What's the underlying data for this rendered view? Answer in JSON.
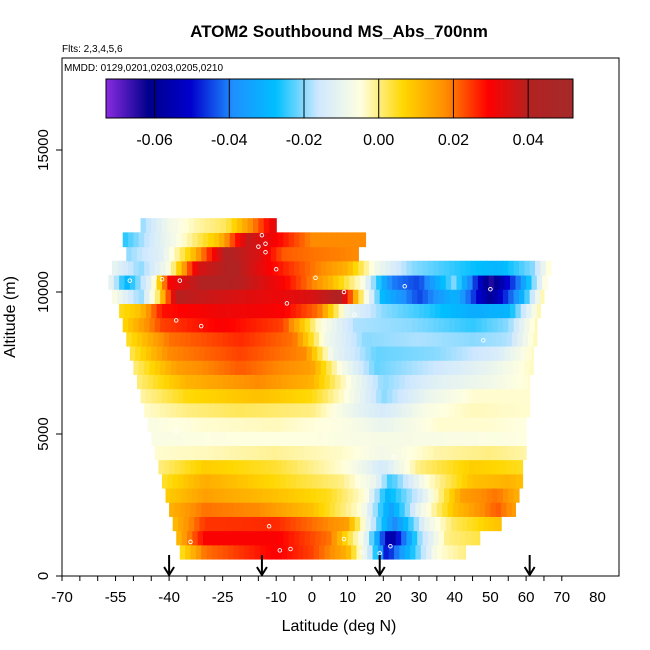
{
  "chart_data": {
    "type": "heatmap",
    "title": "ATOM2 Southbound MS_Abs_700nm",
    "flights_note": "Flts: 2,3,4,5,6",
    "dates_note": "MMDD: 0129,0201,0203,0205,0210",
    "xlabel": "Latitude (deg N)",
    "ylabel": "Altitude (m)",
    "xlim": [
      -70,
      80
    ],
    "ylim": [
      0,
      18000
    ],
    "x_ticks": [
      -70,
      -55,
      -40,
      -25,
      -10,
      0,
      10,
      20,
      30,
      40,
      50,
      60,
      70,
      80
    ],
    "y_ticks": [
      0,
      5000,
      10000,
      15000
    ],
    "colorbar": {
      "range": [
        -0.073,
        0.052
      ],
      "ticks": [
        -0.06,
        -0.04,
        -0.02,
        0.0,
        0.02,
        0.04
      ],
      "tick_labels": [
        "-0.06",
        "-0.04",
        "-0.02",
        "0.00",
        "0.02",
        "0.04"
      ],
      "colors": [
        "#8a2be2",
        "#00008b",
        "#0000cd",
        "#1e90ff",
        "#00bfff",
        "#cfe8ff",
        "#ffffe0",
        "#ffd700",
        "#ff8c00",
        "#ff0000",
        "#b22222",
        "#a52a2a"
      ]
    },
    "bands": [
      {
        "alt": 850,
        "xmin": -37,
        "xmax": 43,
        "pts": [
          [
            -37,
            0.004
          ],
          [
            -30,
            0.02
          ],
          [
            -10,
            0.03
          ],
          [
            0,
            0.024
          ],
          [
            10,
            0.012
          ],
          [
            17,
            -0.02
          ],
          [
            21,
            -0.05
          ],
          [
            27,
            -0.03
          ],
          [
            35,
            -0.005
          ],
          [
            43,
            0.0
          ]
        ]
      },
      {
        "alt": 1350,
        "xmin": -38,
        "xmax": 47,
        "pts": [
          [
            -38,
            0.01
          ],
          [
            -30,
            0.03
          ],
          [
            -10,
            0.03
          ],
          [
            5,
            0.02
          ],
          [
            15,
            -0.01
          ],
          [
            22,
            -0.06
          ],
          [
            30,
            -0.02
          ],
          [
            38,
            0.0
          ],
          [
            47,
            0.003
          ]
        ]
      },
      {
        "alt": 1850,
        "xmin": -39,
        "xmax": 53,
        "pts": [
          [
            -39,
            0.01
          ],
          [
            -30,
            0.025
          ],
          [
            -10,
            0.026
          ],
          [
            10,
            0.015
          ],
          [
            18,
            -0.02
          ],
          [
            23,
            -0.04
          ],
          [
            32,
            -0.01
          ],
          [
            40,
            0.002
          ],
          [
            53,
            0.01
          ]
        ]
      },
      {
        "alt": 2350,
        "xmin": -40,
        "xmax": 57,
        "pts": [
          [
            -40,
            0.012
          ],
          [
            -30,
            0.02
          ],
          [
            -15,
            0.018
          ],
          [
            0,
            0.01
          ],
          [
            14,
            -0.005
          ],
          [
            22,
            -0.035
          ],
          [
            30,
            -0.01
          ],
          [
            40,
            0.01
          ],
          [
            52,
            0.022
          ],
          [
            57,
            0.015
          ]
        ]
      },
      {
        "alt": 2850,
        "xmin": -41,
        "xmax": 58,
        "pts": [
          [
            -41,
            0.008
          ],
          [
            -30,
            0.015
          ],
          [
            -10,
            0.01
          ],
          [
            5,
            0.005
          ],
          [
            15,
            -0.005
          ],
          [
            21,
            -0.03
          ],
          [
            30,
            -0.015
          ],
          [
            42,
            0.015
          ],
          [
            52,
            0.02
          ],
          [
            58,
            0.012
          ]
        ]
      },
      {
        "alt": 3350,
        "xmin": -42,
        "xmax": 59,
        "pts": [
          [
            -42,
            0.004
          ],
          [
            -30,
            0.013
          ],
          [
            -10,
            0.006
          ],
          [
            8,
            0.0
          ],
          [
            18,
            -0.01
          ],
          [
            22,
            -0.025
          ],
          [
            32,
            -0.005
          ],
          [
            45,
            0.01
          ],
          [
            55,
            0.012
          ],
          [
            59,
            0.01
          ]
        ]
      },
      {
        "alt": 3850,
        "xmin": -43,
        "xmax": 59,
        "pts": [
          [
            -43,
            0.0
          ],
          [
            -30,
            0.008
          ],
          [
            -10,
            0.004
          ],
          [
            10,
            -0.005
          ],
          [
            20,
            -0.015
          ],
          [
            30,
            0.0
          ],
          [
            45,
            0.008
          ],
          [
            59,
            0.005
          ]
        ]
      },
      {
        "alt": 4350,
        "xmin": -44,
        "xmax": 60,
        "pts": [
          [
            -44,
            -0.004
          ],
          [
            -30,
            -0.003
          ],
          [
            -10,
            -0.001
          ],
          [
            10,
            -0.004
          ],
          [
            20,
            -0.008
          ],
          [
            35,
            -0.002
          ],
          [
            50,
            0.0
          ],
          [
            60,
            -0.002
          ]
        ]
      },
      {
        "alt": 4850,
        "xmin": -45,
        "xmax": 60,
        "pts": [
          [
            -45,
            -0.006
          ],
          [
            -20,
            -0.005
          ],
          [
            0,
            -0.005
          ],
          [
            20,
            -0.007
          ],
          [
            40,
            -0.006
          ],
          [
            60,
            -0.005
          ]
        ]
      },
      {
        "alt": 5350,
        "xmin": -46,
        "xmax": 60,
        "pts": [
          [
            -46,
            -0.006
          ],
          [
            -30,
            -0.004
          ],
          [
            -10,
            -0.003
          ],
          [
            10,
            -0.006
          ],
          [
            20,
            -0.01
          ],
          [
            35,
            -0.004
          ],
          [
            50,
            -0.004
          ],
          [
            60,
            -0.005
          ]
        ]
      },
      {
        "alt": 5850,
        "xmin": -47,
        "xmax": 61,
        "pts": [
          [
            -47,
            -0.004
          ],
          [
            -35,
            0.0
          ],
          [
            -20,
            0.002
          ],
          [
            0,
            0.0
          ],
          [
            12,
            -0.01
          ],
          [
            20,
            -0.015
          ],
          [
            32,
            -0.006
          ],
          [
            45,
            -0.003
          ],
          [
            61,
            -0.004
          ]
        ]
      },
      {
        "alt": 6350,
        "xmin": -48,
        "xmax": 61,
        "pts": [
          [
            -48,
            -0.002
          ],
          [
            -35,
            0.006
          ],
          [
            -15,
            0.01
          ],
          [
            0,
            0.006
          ],
          [
            12,
            -0.008
          ],
          [
            20,
            -0.02
          ],
          [
            32,
            -0.01
          ],
          [
            45,
            -0.004
          ],
          [
            61,
            -0.004
          ]
        ]
      },
      {
        "alt": 6850,
        "xmin": -49,
        "xmax": 61,
        "pts": [
          [
            -49,
            0.0
          ],
          [
            -35,
            0.012
          ],
          [
            -15,
            0.018
          ],
          [
            0,
            0.012
          ],
          [
            10,
            -0.005
          ],
          [
            20,
            -0.02
          ],
          [
            35,
            -0.012
          ],
          [
            50,
            -0.008
          ],
          [
            61,
            -0.004
          ]
        ]
      },
      {
        "alt": 7350,
        "xmin": -50,
        "xmax": 62,
        "pts": [
          [
            -50,
            0.0
          ],
          [
            -38,
            0.015
          ],
          [
            -20,
            0.022
          ],
          [
            0,
            0.015
          ],
          [
            8,
            -0.006
          ],
          [
            18,
            -0.022
          ],
          [
            35,
            -0.016
          ],
          [
            50,
            -0.01
          ],
          [
            62,
            -0.003
          ]
        ]
      },
      {
        "alt": 7850,
        "xmin": -51,
        "xmax": 62,
        "pts": [
          [
            -51,
            0.002
          ],
          [
            -40,
            0.018
          ],
          [
            -20,
            0.024
          ],
          [
            -2,
            0.018
          ],
          [
            6,
            -0.01
          ],
          [
            18,
            -0.022
          ],
          [
            35,
            -0.02
          ],
          [
            52,
            -0.014
          ],
          [
            62,
            -0.003
          ]
        ]
      },
      {
        "alt": 8350,
        "xmin": -52,
        "xmax": 63,
        "pts": [
          [
            -52,
            0.004
          ],
          [
            -40,
            0.02
          ],
          [
            -20,
            0.026
          ],
          [
            -5,
            0.02
          ],
          [
            4,
            -0.008
          ],
          [
            15,
            -0.02
          ],
          [
            30,
            -0.018
          ],
          [
            45,
            -0.02
          ],
          [
            55,
            -0.018
          ],
          [
            63,
            -0.002
          ]
        ]
      },
      {
        "alt": 8850,
        "xmin": -53,
        "xmax": 63,
        "pts": [
          [
            -53,
            0.006
          ],
          [
            -42,
            0.024
          ],
          [
            -25,
            0.03
          ],
          [
            -8,
            0.024
          ],
          [
            2,
            -0.004
          ],
          [
            12,
            -0.018
          ],
          [
            28,
            -0.02
          ],
          [
            45,
            -0.025
          ],
          [
            55,
            -0.02
          ],
          [
            63,
            -0.002
          ]
        ]
      },
      {
        "alt": 9350,
        "xmin": -54,
        "xmax": 64,
        "pts": [
          [
            -54,
            0.005
          ],
          [
            -48,
            0.01
          ],
          [
            -42,
            0.028
          ],
          [
            -25,
            0.032
          ],
          [
            -8,
            0.03
          ],
          [
            2,
            0.02
          ],
          [
            10,
            -0.01
          ],
          [
            20,
            -0.02
          ],
          [
            32,
            -0.025
          ],
          [
            45,
            -0.032
          ],
          [
            55,
            -0.03
          ],
          [
            64,
            -0.001
          ]
        ]
      },
      {
        "alt": 9850,
        "xmin": -56,
        "xmax": 65,
        "pts": [
          [
            -56,
            -0.005
          ],
          [
            -48,
            -0.02
          ],
          [
            -43,
            0.002
          ],
          [
            -38,
            0.04
          ],
          [
            -25,
            0.036
          ],
          [
            -10,
            0.032
          ],
          [
            0,
            0.035
          ],
          [
            8,
            0.042
          ],
          [
            14,
            0.0
          ],
          [
            20,
            -0.03
          ],
          [
            30,
            -0.045
          ],
          [
            40,
            -0.03
          ],
          [
            50,
            -0.06
          ],
          [
            58,
            -0.035
          ],
          [
            65,
            0.0
          ]
        ]
      },
      {
        "alt": 10350,
        "xmin": -57,
        "xmax": 66,
        "pts": [
          [
            -57,
            -0.008
          ],
          [
            -52,
            -0.03
          ],
          [
            -45,
            -0.01
          ],
          [
            -40,
            0.03
          ],
          [
            -30,
            0.042
          ],
          [
            -20,
            0.04
          ],
          [
            -8,
            0.03
          ],
          [
            5,
            0.012
          ],
          [
            14,
            -0.005
          ],
          [
            22,
            -0.04
          ],
          [
            30,
            -0.045
          ],
          [
            40,
            -0.02
          ],
          [
            50,
            -0.065
          ],
          [
            58,
            -0.04
          ],
          [
            66,
            -0.002
          ]
        ]
      },
      {
        "alt": 10850,
        "xmin": -56,
        "xmax": 67,
        "pts": [
          [
            -56,
            -0.01
          ],
          [
            -48,
            -0.02
          ],
          [
            -40,
            -0.006
          ],
          [
            -32,
            0.035
          ],
          [
            -22,
            0.042
          ],
          [
            -12,
            0.03
          ],
          [
            0,
            0.02
          ],
          [
            10,
            0.012
          ],
          [
            18,
            -0.008
          ],
          [
            28,
            -0.02
          ],
          [
            40,
            -0.025
          ],
          [
            52,
            -0.03
          ],
          [
            62,
            -0.02
          ],
          [
            67,
            -0.002
          ]
        ]
      },
      {
        "alt": 11350,
        "xmin": -52,
        "xmax": 13,
        "pts": [
          [
            -52,
            -0.02
          ],
          [
            -42,
            -0.012
          ],
          [
            -34,
            0.008
          ],
          [
            -24,
            0.042
          ],
          [
            -15,
            0.035
          ],
          [
            -8,
            0.022
          ],
          [
            0,
            0.02
          ],
          [
            13,
            0.018
          ]
        ]
      },
      {
        "alt": 11850,
        "xmin": -53,
        "xmax": 15,
        "pts": [
          [
            -53,
            -0.026
          ],
          [
            -45,
            -0.015
          ],
          [
            -36,
            -0.004
          ],
          [
            -26,
            0.01
          ],
          [
            -18,
            0.038
          ],
          [
            -10,
            0.03
          ],
          [
            0,
            0.018
          ],
          [
            15,
            0.018
          ]
        ]
      },
      {
        "alt": 12350,
        "xmin": -48,
        "xmax": -10,
        "pts": [
          [
            -48,
            -0.02
          ],
          [
            -40,
            -0.008
          ],
          [
            -32,
            -0.002
          ],
          [
            -24,
            0.002
          ],
          [
            -15,
            0.022
          ],
          [
            -10,
            0.035
          ]
        ]
      }
    ],
    "markers": [
      [
        -51,
        10400
      ],
      [
        -44,
        10500
      ],
      [
        -42,
        10450
      ],
      [
        -37,
        10400
      ],
      [
        -58,
        9700
      ],
      [
        -55,
        9400
      ],
      [
        -38,
        9000
      ],
      [
        -31,
        8800
      ],
      [
        -15,
        11600
      ],
      [
        -13,
        11400
      ],
      [
        -13,
        11700
      ],
      [
        -14,
        12000
      ],
      [
        -10,
        10800
      ],
      [
        -7,
        9600
      ],
      [
        1,
        10500
      ],
      [
        9,
        10000
      ],
      [
        12,
        9200
      ],
      [
        26,
        10200
      ],
      [
        48,
        8300
      ],
      [
        50,
        10100
      ],
      [
        58,
        2300
      ],
      [
        -38,
        5100
      ],
      [
        23,
        4200
      ],
      [
        -34,
        1200
      ],
      [
        -12,
        1750
      ],
      [
        -9,
        900
      ],
      [
        -6,
        950
      ],
      [
        9,
        1300
      ],
      [
        14,
        830
      ],
      [
        19,
        800
      ],
      [
        22,
        1050
      ]
    ],
    "arrows_x": [
      -40,
      -14,
      19,
      61
    ]
  }
}
